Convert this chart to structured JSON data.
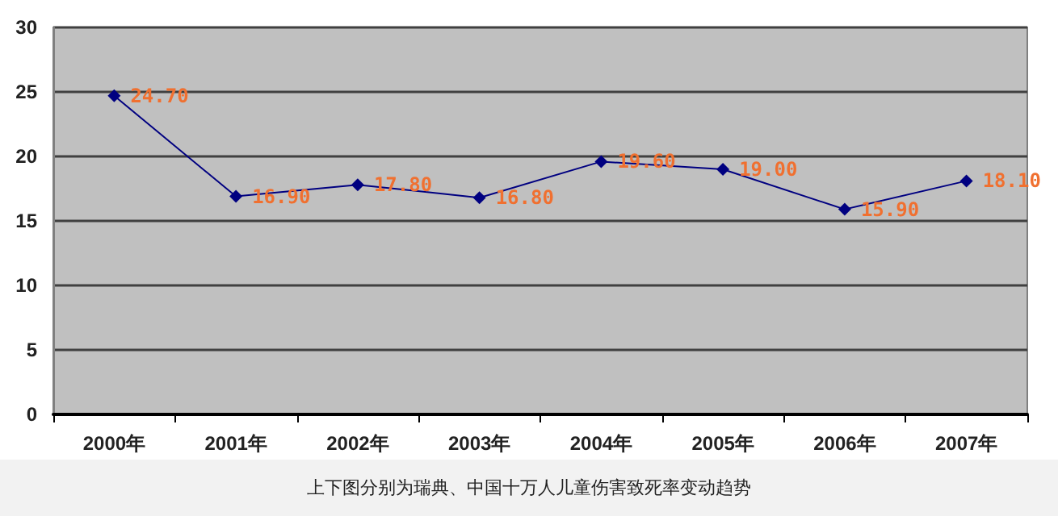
{
  "chart_data": {
    "type": "line",
    "categories": [
      "2000年",
      "2001年",
      "2002年",
      "2003年",
      "2004年",
      "2005年",
      "2006年",
      "2007年"
    ],
    "series": [
      {
        "color": "#000080",
        "values": [
          24.7,
          16.9,
          17.8,
          16.8,
          19.6,
          19.0,
          15.9,
          18.1
        ],
        "value_labels": [
          "24.70",
          "16.90",
          "17.80",
          "16.80",
          "19.60",
          "19.00",
          "15.90",
          "18.10"
        ]
      }
    ],
    "ylim": [
      0,
      30
    ],
    "yticks": [
      0,
      5,
      10,
      15,
      20,
      25,
      30
    ],
    "grid": "y",
    "marker": "diamond",
    "line_style": "solid",
    "annotations": [
      "上下图分别为瑞典、中国十万人儿童伤害致死率变动趋势"
    ]
  }
}
